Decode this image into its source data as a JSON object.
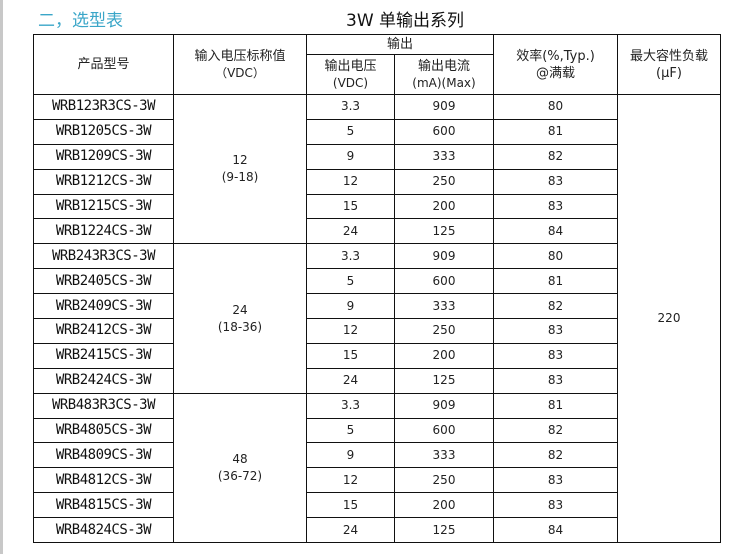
{
  "section_heading": "二，选型表",
  "table_title": "3W 单输出系列",
  "headers": {
    "model": "产品型号",
    "input_voltage": "输入电压标称值",
    "input_voltage_unit": "（VDC）",
    "output": "输出",
    "output_voltage": "输出电压",
    "output_voltage_unit": "(VDC)",
    "output_current": "输出电流",
    "output_current_unit": "(mA)(Max)",
    "efficiency": "效率(%,Typ.)",
    "efficiency_note": "@满载",
    "max_cap_load": "最大容性负载",
    "max_cap_load_unit": "(μF)"
  },
  "capacitive_load": "220",
  "groups": [
    {
      "input": "12",
      "range": "(9-18)",
      "rows": [
        {
          "model": "WRB123R3CS-3W",
          "vout": "3.3",
          "iout": "909",
          "eff": "80"
        },
        {
          "model": "WRB1205CS-3W",
          "vout": "5",
          "iout": "600",
          "eff": "81"
        },
        {
          "model": "WRB1209CS-3W",
          "vout": "9",
          "iout": "333",
          "eff": "82"
        },
        {
          "model": "WRB1212CS-3W",
          "vout": "12",
          "iout": "250",
          "eff": "83"
        },
        {
          "model": "WRB1215CS-3W",
          "vout": "15",
          "iout": "200",
          "eff": "83"
        },
        {
          "model": "WRB1224CS-3W",
          "vout": "24",
          "iout": "125",
          "eff": "84"
        }
      ]
    },
    {
      "input": "24",
      "range": "(18-36)",
      "rows": [
        {
          "model": "WRB243R3CS-3W",
          "vout": "3.3",
          "iout": "909",
          "eff": "80"
        },
        {
          "model": "WRB2405CS-3W",
          "vout": "5",
          "iout": "600",
          "eff": "81"
        },
        {
          "model": "WRB2409CS-3W",
          "vout": "9",
          "iout": "333",
          "eff": "82"
        },
        {
          "model": "WRB2412CS-3W",
          "vout": "12",
          "iout": "250",
          "eff": "83"
        },
        {
          "model": "WRB2415CS-3W",
          "vout": "15",
          "iout": "200",
          "eff": "83"
        },
        {
          "model": "WRB2424CS-3W",
          "vout": "24",
          "iout": "125",
          "eff": "83"
        }
      ]
    },
    {
      "input": "48",
      "range": "(36-72)",
      "rows": [
        {
          "model": "WRB483R3CS-3W",
          "vout": "3.3",
          "iout": "909",
          "eff": "81"
        },
        {
          "model": "WRB4805CS-3W",
          "vout": "5",
          "iout": "600",
          "eff": "82"
        },
        {
          "model": "WRB4809CS-3W",
          "vout": "9",
          "iout": "333",
          "eff": "82"
        },
        {
          "model": "WRB4812CS-3W",
          "vout": "12",
          "iout": "250",
          "eff": "83"
        },
        {
          "model": "WRB4815CS-3W",
          "vout": "15",
          "iout": "200",
          "eff": "83"
        },
        {
          "model": "WRB4824CS-3W",
          "vout": "24",
          "iout": "125",
          "eff": "84"
        }
      ]
    }
  ]
}
